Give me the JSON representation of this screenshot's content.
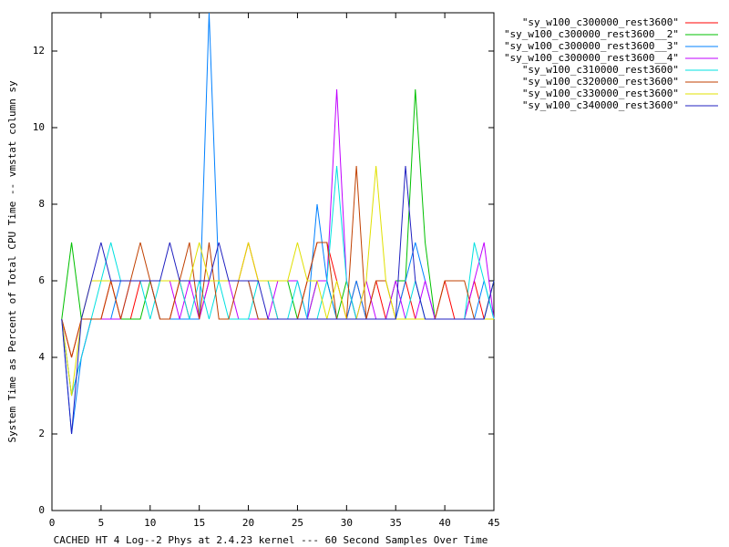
{
  "chart_data": {
    "type": "line",
    "xlabel": "CACHED HT 4 Log--2 Phys at 2.4.23 kernel --- 60 Second Samples Over Time",
    "ylabel": "System Time as Percent of Total CPU Time -- vmstat column sy",
    "xlim": [
      0,
      45
    ],
    "xticks": [
      0,
      5,
      10,
      15,
      20,
      25,
      30,
      35,
      40,
      45
    ],
    "ylim": [
      0,
      13
    ],
    "yticks": [
      0,
      2,
      4,
      6,
      8,
      10,
      12
    ],
    "legend": "top-right",
    "x": [
      1,
      2,
      3,
      4,
      5,
      6,
      7,
      8,
      9,
      10,
      11,
      12,
      13,
      14,
      15,
      16,
      17,
      18,
      19,
      20,
      21,
      22,
      23,
      24,
      25,
      26,
      27,
      28,
      29,
      30,
      31,
      32,
      33,
      34,
      35,
      36,
      37,
      38,
      39,
      40,
      41,
      42,
      43,
      44,
      45
    ],
    "series": [
      {
        "name": "\"sy_w100_c300000_rest3600\"",
        "color": "#ff0000",
        "values": [
          5,
          4,
          5,
          5,
          5,
          6,
          5,
          5,
          6,
          6,
          5,
          5,
          6,
          5,
          5,
          6,
          6,
          6,
          6,
          7,
          6,
          6,
          5,
          5,
          5,
          6,
          7,
          7,
          6,
          5,
          6,
          5,
          6,
          5,
          5,
          6,
          5,
          5,
          5,
          6,
          5,
          5,
          6,
          5,
          5
        ]
      },
      {
        "name": "\"sy_w100_c300000_rest3600__2\"",
        "color": "#00c000",
        "values": [
          5,
          7,
          5,
          5,
          5,
          5,
          5,
          5,
          5,
          6,
          6,
          6,
          6,
          6,
          6,
          6,
          6,
          6,
          6,
          6,
          6,
          6,
          6,
          6,
          5,
          5,
          6,
          6,
          5,
          6,
          5,
          5,
          5,
          5,
          6,
          6,
          11,
          7,
          5,
          5,
          5,
          5,
          5,
          5,
          6
        ]
      },
      {
        "name": "\"sy_w100_c300000_rest3600__3\"",
        "color": "#0080ff",
        "values": [
          5,
          2,
          4,
          5,
          5,
          5,
          6,
          6,
          6,
          6,
          5,
          5,
          5,
          5,
          5,
          13,
          6,
          6,
          6,
          6,
          5,
          5,
          5,
          5,
          5,
          5,
          8,
          6,
          5,
          5,
          6,
          5,
          5,
          5,
          5,
          6,
          7,
          6,
          5,
          5,
          5,
          5,
          5,
          6,
          5
        ]
      },
      {
        "name": "\"sy_w100_c300000_rest3600__4\"",
        "color": "#c000ff",
        "values": [
          5,
          3,
          4,
          5,
          5,
          5,
          5,
          6,
          6,
          6,
          6,
          6,
          5,
          6,
          5,
          6,
          6,
          6,
          5,
          5,
          5,
          5,
          6,
          6,
          6,
          5,
          6,
          6,
          11,
          6,
          5,
          6,
          5,
          5,
          6,
          5,
          5,
          6,
          5,
          5,
          5,
          5,
          6,
          7,
          5
        ]
      },
      {
        "name": "\"sy_w100_c310000_rest3600\"",
        "color": "#00e0e0",
        "values": [
          5,
          3,
          4,
          5,
          6,
          7,
          6,
          6,
          6,
          5,
          6,
          6,
          6,
          5,
          6,
          5,
          6,
          5,
          5,
          5,
          6,
          6,
          5,
          5,
          6,
          5,
          5,
          6,
          9,
          6,
          5,
          5,
          5,
          5,
          5,
          5,
          6,
          5,
          5,
          5,
          5,
          5,
          7,
          6,
          5
        ]
      },
      {
        "name": "\"sy_w100_c320000_rest3600\"",
        "color": "#c04000",
        "values": [
          5,
          4,
          5,
          5,
          5,
          6,
          5,
          6,
          7,
          6,
          5,
          5,
          6,
          7,
          5,
          7,
          5,
          5,
          6,
          6,
          5,
          5,
          5,
          5,
          5,
          6,
          7,
          7,
          5,
          5,
          9,
          5,
          6,
          6,
          5,
          5,
          5,
          5,
          5,
          6,
          6,
          6,
          5,
          5,
          5
        ]
      },
      {
        "name": "\"sy_w100_c330000_rest3600\"",
        "color": "#e0e000",
        "values": [
          5,
          3,
          5,
          6,
          6,
          6,
          6,
          6,
          6,
          6,
          6,
          6,
          6,
          6,
          7,
          6,
          6,
          6,
          6,
          7,
          6,
          6,
          6,
          6,
          7,
          6,
          6,
          5,
          6,
          5,
          5,
          6,
          9,
          6,
          5,
          5,
          5,
          5,
          5,
          5,
          5,
          5,
          5,
          5,
          5
        ]
      },
      {
        "name": "\"sy_w100_c340000_rest3600\"",
        "color": "#2020c0",
        "values": [
          5,
          2,
          5,
          6,
          7,
          6,
          6,
          6,
          6,
          6,
          6,
          7,
          6,
          6,
          6,
          6,
          7,
          6,
          6,
          6,
          6,
          5,
          5,
          5,
          5,
          5,
          5,
          5,
          5,
          5,
          5,
          5,
          5,
          5,
          5,
          9,
          6,
          5,
          5,
          5,
          5,
          5,
          5,
          5,
          6
        ]
      }
    ]
  }
}
